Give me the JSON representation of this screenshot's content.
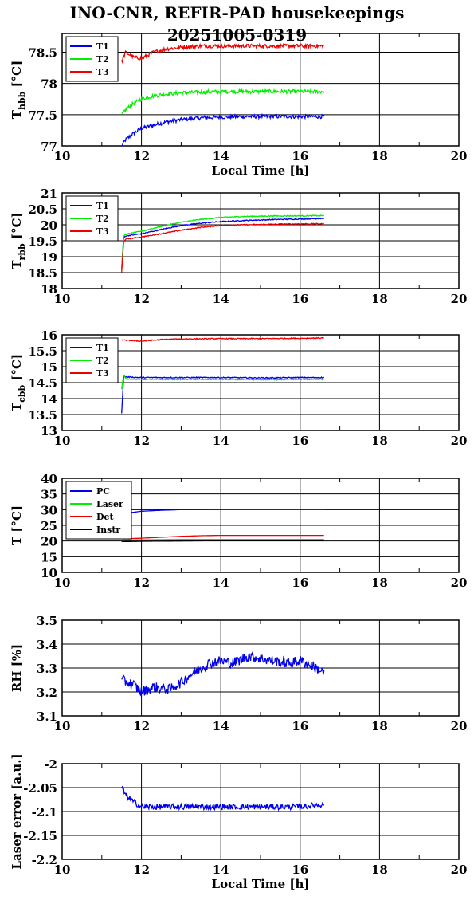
{
  "title": "INO-CNR, REFIR-PAD housekeepings",
  "subtitle": "20251005-0319",
  "colors": {
    "blue": "#0000ee",
    "green": "#00ee00",
    "red": "#ee0000",
    "black": "#000000"
  },
  "chart_data": [
    {
      "type": "line",
      "ylabel_main": "T",
      "ylabel_sub": "hbb",
      "ylabel_unit": "[°C]",
      "xlabel": "Local Time [h]",
      "xlim": [
        10,
        20
      ],
      "ylim": [
        77,
        78.8
      ],
      "xticks": [
        "10",
        "12",
        "14",
        "16",
        "18",
        "20"
      ],
      "yticks": [
        "77",
        "77.5",
        "78",
        "78.5"
      ],
      "ytick_values": [
        77,
        77.5,
        78,
        78.5
      ],
      "noise": 0.03,
      "series": [
        {
          "name": "T1",
          "color": "#0000ee",
          "x": [
            11.5,
            11.6,
            11.8,
            12,
            12.3,
            12.6,
            13,
            13.5,
            14,
            14.5,
            15,
            15.5,
            16,
            16.6
          ],
          "y": [
            77.0,
            77.1,
            77.2,
            77.28,
            77.33,
            77.38,
            77.42,
            77.45,
            77.46,
            77.47,
            77.47,
            77.47,
            77.47,
            77.47
          ]
        },
        {
          "name": "T2",
          "color": "#00ee00",
          "x": [
            11.5,
            11.6,
            11.8,
            12,
            12.3,
            12.6,
            13,
            13.5,
            14,
            14.5,
            15,
            15.5,
            16,
            16.6
          ],
          "y": [
            77.5,
            77.58,
            77.68,
            77.75,
            77.8,
            77.83,
            77.85,
            77.86,
            77.87,
            77.87,
            77.87,
            77.87,
            77.87,
            77.87
          ]
        },
        {
          "name": "T3",
          "color": "#ee0000",
          "x": [
            11.5,
            11.6,
            11.8,
            12,
            12.3,
            12.6,
            13,
            13.5,
            14,
            14.5,
            15,
            15.5,
            16,
            16.6
          ],
          "y": [
            78.35,
            78.5,
            78.42,
            78.4,
            78.5,
            78.55,
            78.58,
            78.6,
            78.6,
            78.6,
            78.6,
            78.6,
            78.6,
            78.6
          ]
        }
      ],
      "legend": [
        "T1",
        "T2",
        "T3"
      ]
    },
    {
      "type": "line",
      "ylabel_main": "T",
      "ylabel_sub": "rbb",
      "ylabel_unit": "[°C]",
      "xlabel": "",
      "xlim": [
        10,
        20
      ],
      "ylim": [
        18,
        21
      ],
      "xticks": [
        "10",
        "12",
        "14",
        "16",
        "18",
        "20"
      ],
      "yticks": [
        "18",
        "18.5",
        "19",
        "19.5",
        "20",
        "20.5",
        "21"
      ],
      "ytick_values": [
        18,
        18.5,
        19,
        19.5,
        20,
        20.5,
        21
      ],
      "noise": 0.015,
      "series": [
        {
          "name": "T1",
          "color": "#0000ee",
          "x": [
            11.5,
            11.55,
            11.6,
            12,
            12.5,
            13,
            13.5,
            14,
            14.5,
            15,
            15.5,
            16,
            16.6
          ],
          "y": [
            18.6,
            19.6,
            19.65,
            19.72,
            19.85,
            19.98,
            20.05,
            20.1,
            20.13,
            20.15,
            20.17,
            20.18,
            20.2
          ]
        },
        {
          "name": "T2",
          "color": "#00ee00",
          "x": [
            11.5,
            11.55,
            11.6,
            12,
            12.5,
            13,
            13.5,
            14,
            14.5,
            15,
            15.5,
            16,
            16.6
          ],
          "y": [
            18.6,
            19.65,
            19.7,
            19.8,
            19.95,
            20.08,
            20.17,
            20.23,
            20.26,
            20.27,
            20.28,
            20.28,
            20.29
          ]
        },
        {
          "name": "T3",
          "color": "#ee0000",
          "x": [
            11.5,
            11.55,
            11.6,
            12,
            12.5,
            13,
            13.5,
            14,
            14.5,
            15,
            15.5,
            16,
            16.6
          ],
          "y": [
            18.5,
            19.48,
            19.55,
            19.62,
            19.72,
            19.83,
            19.92,
            19.98,
            20.0,
            20.01,
            20.02,
            20.03,
            20.03
          ]
        }
      ],
      "legend": [
        "T1",
        "T2",
        "T3"
      ]
    },
    {
      "type": "line",
      "ylabel_main": "T",
      "ylabel_sub": "cbb",
      "ylabel_unit": "[°C]",
      "xlabel": "",
      "xlim": [
        10,
        20
      ],
      "ylim": [
        13,
        16
      ],
      "xticks": [
        "10",
        "12",
        "14",
        "16",
        "18",
        "20"
      ],
      "yticks": [
        "13",
        "13.5",
        "14",
        "14.5",
        "15",
        "15.5",
        "16"
      ],
      "ytick_values": [
        13,
        13.5,
        14,
        14.5,
        15,
        15.5,
        16
      ],
      "noise": 0.015,
      "series": [
        {
          "name": "T1",
          "color": "#0000ee",
          "x": [
            11.5,
            11.55,
            11.6,
            12,
            13,
            14,
            15,
            16,
            16.6
          ],
          "y": [
            13.55,
            14.7,
            14.68,
            14.66,
            14.66,
            14.66,
            14.65,
            14.66,
            14.66
          ]
        },
        {
          "name": "T2",
          "color": "#00ee00",
          "x": [
            11.5,
            11.55,
            11.6,
            12,
            13,
            14,
            15,
            16,
            16.6
          ],
          "y": [
            14.3,
            14.75,
            14.62,
            14.6,
            14.6,
            14.6,
            14.59,
            14.6,
            14.6
          ]
        },
        {
          "name": "T3",
          "color": "#ee0000",
          "x": [
            11.5,
            11.55,
            12,
            12.5,
            13,
            14,
            15,
            16,
            16.6
          ],
          "y": [
            15.85,
            15.83,
            15.8,
            15.85,
            15.87,
            15.88,
            15.88,
            15.89,
            15.9
          ]
        }
      ],
      "legend": [
        "T1",
        "T2",
        "T3"
      ]
    },
    {
      "type": "line",
      "ylabel_main": "T",
      "ylabel_sub": "",
      "ylabel_unit": "[°C]",
      "xlabel": "",
      "xlim": [
        10,
        20
      ],
      "ylim": [
        10,
        40
      ],
      "xticks": [
        "10",
        "12",
        "14",
        "16",
        "18",
        "20"
      ],
      "yticks": [
        "10",
        "15",
        "20",
        "25",
        "30",
        "35",
        "40"
      ],
      "ytick_values": [
        10,
        15,
        20,
        25,
        30,
        35,
        40
      ],
      "noise": 0.0,
      "series": [
        {
          "name": "PC",
          "color": "#0000ee",
          "x": [
            11.5,
            11.7,
            12,
            12.5,
            13,
            14,
            15,
            16,
            16.6
          ],
          "y": [
            28.5,
            29.0,
            29.5,
            29.8,
            30.0,
            30.1,
            30.1,
            30.1,
            30.1
          ]
        },
        {
          "name": "Laser",
          "color": "#00ee00",
          "x": [
            11.5,
            12,
            13,
            14,
            15,
            16,
            16.6
          ],
          "y": [
            20.3,
            20.4,
            20.5,
            20.5,
            20.5,
            20.5,
            20.5
          ]
        },
        {
          "name": "Det",
          "color": "#ee0000",
          "x": [
            11.5,
            12,
            12.5,
            13,
            13.5,
            14,
            15,
            16,
            16.6
          ],
          "y": [
            20.7,
            20.9,
            21.2,
            21.5,
            21.7,
            21.8,
            21.8,
            21.8,
            21.8
          ]
        },
        {
          "name": "Instr",
          "color": "#000000",
          "x": [
            11.5,
            12,
            13,
            14,
            15,
            16,
            16.6
          ],
          "y": [
            19.8,
            19.9,
            20.0,
            20.1,
            20.1,
            20.1,
            20.1
          ]
        }
      ],
      "legend": [
        "PC",
        "Laser",
        "Det",
        "Instr"
      ]
    },
    {
      "type": "line",
      "ylabel_main": "RH [%]",
      "ylabel_sub": "",
      "ylabel_unit": "",
      "xlabel": "",
      "xlim": [
        10,
        20
      ],
      "ylim": [
        3.1,
        3.5
      ],
      "xticks": [
        "10",
        "12",
        "14",
        "16",
        "18",
        "20"
      ],
      "yticks": [
        "3.1",
        "3.2",
        "3.3",
        "3.4",
        "3.5"
      ],
      "ytick_values": [
        3.1,
        3.2,
        3.3,
        3.4,
        3.5
      ],
      "noise": 0.022,
      "series": [
        {
          "name": "RH",
          "color": "#0000ee",
          "x": [
            11.5,
            11.8,
            12,
            12.3,
            12.7,
            13,
            13.3,
            13.7,
            14,
            14.3,
            14.7,
            15,
            15.3,
            15.7,
            16,
            16.3,
            16.6
          ],
          "y": [
            3.25,
            3.23,
            3.2,
            3.22,
            3.21,
            3.24,
            3.28,
            3.32,
            3.33,
            3.32,
            3.35,
            3.34,
            3.33,
            3.32,
            3.33,
            3.31,
            3.28
          ]
        }
      ],
      "legend": []
    },
    {
      "type": "line",
      "ylabel_main": "Laser error [a.u.]",
      "ylabel_sub": "",
      "ylabel_unit": "",
      "xlabel": "Local Time [h]",
      "xlim": [
        10,
        20
      ],
      "ylim": [
        -2.2,
        -2.0
      ],
      "xticks": [
        "10",
        "12",
        "14",
        "16",
        "18",
        "20"
      ],
      "yticks": [
        "-2.2",
        "-2.15",
        "-2.1",
        "-2.05",
        "-2"
      ],
      "ytick_values": [
        -2.2,
        -2.15,
        -2.1,
        -2.05,
        -2.0
      ],
      "noise": 0.006,
      "series": [
        {
          "name": "Laser error",
          "color": "#0000ee",
          "x": [
            11.5,
            11.6,
            11.8,
            12,
            13,
            14,
            15,
            16,
            16.6
          ],
          "y": [
            -2.05,
            -2.065,
            -2.08,
            -2.09,
            -2.09,
            -2.09,
            -2.09,
            -2.09,
            -2.085
          ]
        }
      ],
      "legend": []
    }
  ]
}
